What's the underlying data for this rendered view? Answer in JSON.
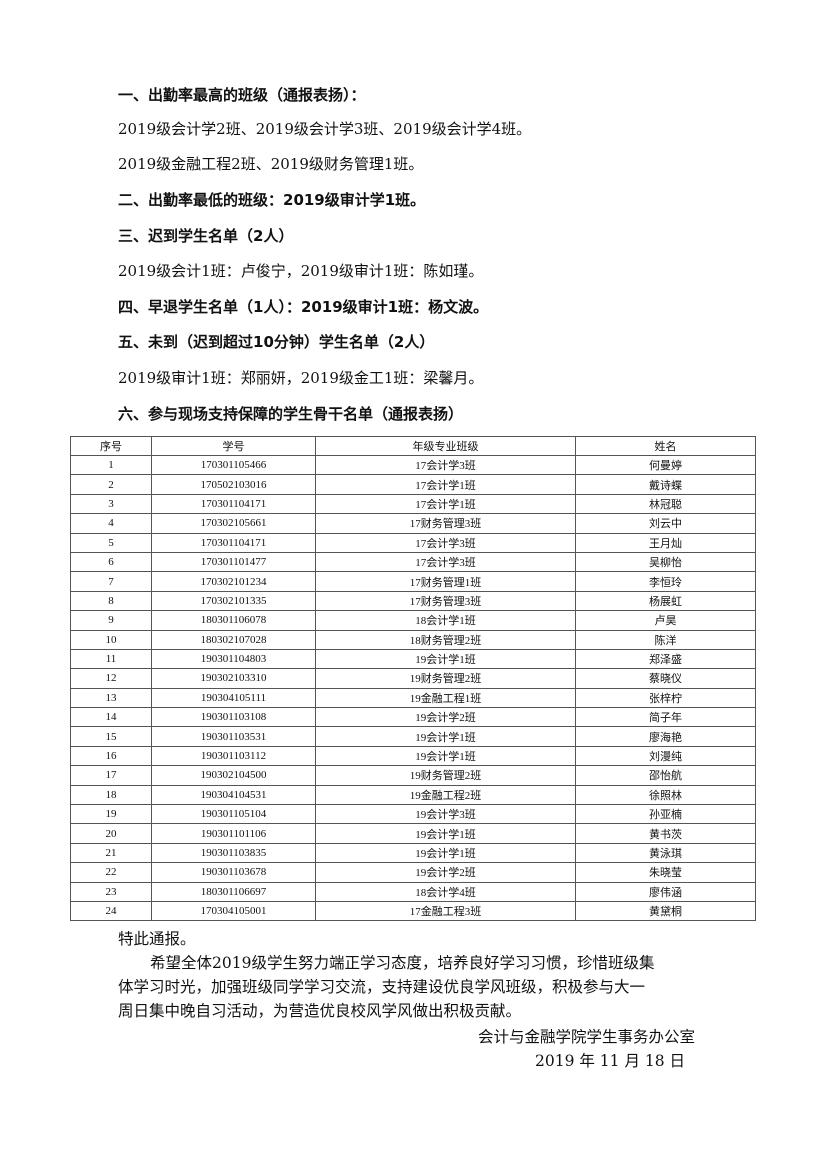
{
  "sections": [
    {
      "text": "一、出勤率最高的班级（通报表扬）：",
      "heading": true
    },
    {
      "text": "2019级会计学2班、2019级会计学3班、2019级会计学4班。",
      "heading": false
    },
    {
      "text": "2019级金融工程2班、2019级财务管理1班。",
      "heading": false
    },
    {
      "text": "二、出勤率最低的班级：2019级审计学1班。",
      "heading": true
    },
    {
      "text": "三、迟到学生名单（2人）",
      "heading": true
    },
    {
      "text": "2019级会计1班：卢俊宁，2019级审计1班：陈如瑾。",
      "heading": false
    },
    {
      "text": "四、早退学生名单（1人）：2019级审计1班：杨文波。",
      "heading": true
    },
    {
      "text": "五、未到（迟到超过10分钟）学生名单（2人）",
      "heading": true
    },
    {
      "text": "2019级审计1班：郑丽妍，2019级金工1班：梁馨月。",
      "heading": false
    },
    {
      "text": "六、参与现场支持保障的学生骨干名单（通报表扬）",
      "heading": true
    }
  ],
  "table": {
    "headers": [
      "序号",
      "学号",
      "年级专业班级",
      "姓名"
    ],
    "rows": [
      [
        "1",
        "170301105466",
        "17会计学3班",
        "何曼婷"
      ],
      [
        "2",
        "170502103016",
        "17会计学1班",
        "戴诗蝶"
      ],
      [
        "3",
        "170301104171",
        "17会计学1班",
        "林冠聪"
      ],
      [
        "4",
        "170302105661",
        "17财务管理3班",
        "刘云中"
      ],
      [
        "5",
        "170301104171",
        "17会计学3班",
        "王月灿"
      ],
      [
        "6",
        "170301101477",
        "17会计学3班",
        "吴柳怡"
      ],
      [
        "7",
        "170302101234",
        "17财务管理1班",
        "李恒玲"
      ],
      [
        "8",
        "170302101335",
        "17财务管理3班",
        "杨展虹"
      ],
      [
        "9",
        "180301106078",
        "18会计学1班",
        "卢昊"
      ],
      [
        "10",
        "180302107028",
        "18财务管理2班",
        "陈洋"
      ],
      [
        "11",
        "190301104803",
        "19会计学1班",
        "郑泽盛"
      ],
      [
        "12",
        "190302103310",
        "19财务管理2班",
        "蔡晓仪"
      ],
      [
        "13",
        "190304105111",
        "19金融工程1班",
        "张梓柠"
      ],
      [
        "14",
        "190301103108",
        "19会计学2班",
        "简子年"
      ],
      [
        "15",
        "190301103531",
        "19会计学1班",
        "廖海艳"
      ],
      [
        "16",
        "190301103112",
        "19会计学1班",
        "刘漫纯"
      ],
      [
        "17",
        "190302104500",
        "19财务管理2班",
        "邵怡航"
      ],
      [
        "18",
        "190304104531",
        "19金融工程2班",
        "徐照林"
      ],
      [
        "19",
        "190301105104",
        "19会计学3班",
        "孙亚楠"
      ],
      [
        "20",
        "190301101106",
        "19会计学1班",
        "黄书茨"
      ],
      [
        "21",
        "190301103835",
        "19会计学1班",
        "黄泳琪"
      ],
      [
        "22",
        "190301103678",
        "19会计学2班",
        "朱晓莹"
      ],
      [
        "23",
        "180301106697",
        "18会计学4班",
        "廖伟涵"
      ],
      [
        "24",
        "170304105001",
        "17金融工程3班",
        "黄黛桐"
      ]
    ]
  },
  "closing": {
    "notice": "特此通报。",
    "para_lines": [
      "希望全体2019级学生努力端正学习态度，培养良好学习习惯，珍惜班级集",
      "体学习时光，加强班级同学学习交流，支持建设优良学风班级，积极参与大一",
      "周日集中晚自习活动，为营造优良校风学风做出积极贡献。"
    ],
    "signature": "会计与金融学院学生事务办公室",
    "date": "2019 年 11 月 18 日"
  }
}
